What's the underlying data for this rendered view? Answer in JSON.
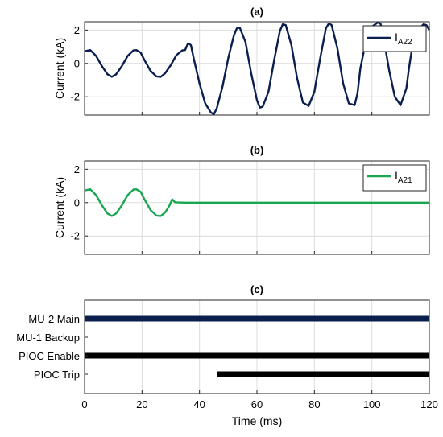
{
  "chart_data": [
    {
      "type": "line",
      "title": "(a)",
      "xlabel": "",
      "ylabel": "Current (kA)",
      "xlim": [
        0,
        120
      ],
      "ylim": [
        -3.1,
        2.5
      ],
      "xticks": [
        0,
        20,
        40,
        60,
        80,
        100,
        120
      ],
      "yticks": [
        -2,
        0,
        2
      ],
      "grid": true,
      "legend_position": "top-right",
      "series": [
        {
          "name": "I",
          "name_sub": "A22",
          "color": "#0b1f4f",
          "x": [
            0,
            2,
            4,
            6,
            8,
            9.5,
            11,
            13,
            15,
            17,
            18,
            19.5,
            21,
            23,
            25,
            26.5,
            28,
            30,
            32,
            34,
            35,
            36,
            37,
            38,
            40,
            42,
            44,
            45,
            46,
            48,
            50,
            52,
            53,
            54,
            56,
            58,
            60,
            61,
            62,
            64,
            66,
            68,
            69,
            70,
            72,
            74,
            76,
            78,
            80,
            82,
            84,
            85,
            86,
            88,
            90,
            92,
            94,
            95,
            96,
            98,
            100,
            102,
            103,
            104,
            106,
            108,
            110,
            112,
            113,
            114,
            116,
            118,
            119,
            120
          ],
          "y": [
            0.73,
            0.8,
            0.45,
            -0.15,
            -0.65,
            -0.8,
            -0.65,
            -0.15,
            0.45,
            0.78,
            0.8,
            0.65,
            0.15,
            -0.45,
            -0.78,
            -0.8,
            -0.6,
            -0.1,
            0.5,
            0.78,
            0.8,
            1.2,
            1.1,
            0.3,
            -1.2,
            -2.4,
            -2.95,
            -3.05,
            -2.7,
            -1.4,
            0.3,
            1.7,
            2.1,
            2.15,
            1.3,
            -0.6,
            -2.2,
            -2.65,
            -2.6,
            -1.7,
            0.2,
            1.95,
            2.35,
            2.3,
            1.1,
            -0.9,
            -2.35,
            -2.55,
            -1.7,
            0.3,
            2.1,
            2.4,
            2.3,
            0.9,
            -1.2,
            -2.4,
            -2.5,
            -1.8,
            -0.3,
            1.4,
            2.2,
            2.45,
            2.4,
            1.6,
            -0.4,
            -2.0,
            -2.5,
            -1.5,
            -0.2,
            0.9,
            2.0,
            2.35,
            2.3,
            2.0
          ]
        }
      ]
    },
    {
      "type": "line",
      "title": "(b)",
      "xlabel": "",
      "ylabel": "Current (kA)",
      "xlim": [
        0,
        120
      ],
      "ylim": [
        -3.1,
        2.5
      ],
      "xticks": [
        0,
        20,
        40,
        60,
        80,
        100,
        120
      ],
      "yticks": [
        -2,
        0,
        2
      ],
      "grid": true,
      "legend_position": "top-right",
      "series": [
        {
          "name": "I",
          "name_sub": "A21",
          "color": "#1aa650",
          "x": [
            0,
            2,
            4,
            6,
            8,
            9.5,
            11,
            13,
            15,
            17,
            18,
            19.5,
            21,
            23,
            25,
            26.5,
            28,
            29.5,
            30.5,
            31,
            31.5,
            35,
            60,
            90,
            120
          ],
          "y": [
            0.73,
            0.8,
            0.45,
            -0.15,
            -0.65,
            -0.8,
            -0.65,
            -0.15,
            0.45,
            0.78,
            0.8,
            0.65,
            0.15,
            -0.45,
            -0.78,
            -0.8,
            -0.6,
            -0.2,
            0.2,
            0.1,
            0.02,
            0,
            0,
            0,
            0
          ]
        }
      ]
    },
    {
      "type": "bar",
      "title": "(c)",
      "xlabel": "Time (ms)",
      "ylabel": "",
      "xlim": [
        0,
        120
      ],
      "xticks": [
        0,
        20,
        40,
        60,
        80,
        100,
        120
      ],
      "grid": true,
      "categories": [
        "MU-2 Main",
        "MU-1 Backup",
        "PIOC Enable",
        "PIOC Trip"
      ],
      "intervals": [
        {
          "start": 0,
          "end": 120,
          "color": "#0b1f4f"
        },
        null,
        {
          "start": 0,
          "end": 120,
          "color": "#000000"
        },
        {
          "start": 46,
          "end": 120,
          "color": "#000000"
        }
      ]
    }
  ]
}
